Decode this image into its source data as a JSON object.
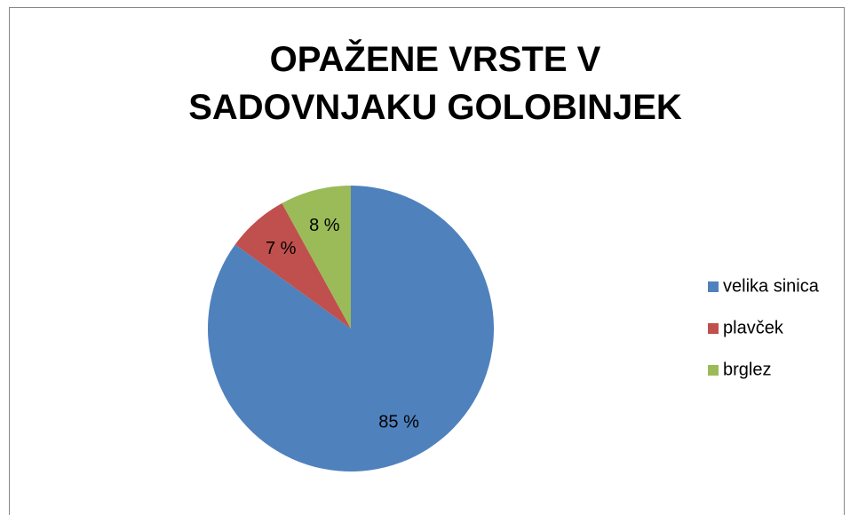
{
  "chart_data": {
    "type": "pie",
    "title": "OPAŽENE VRSTE V SADOVNJAKU GOLOBINJEK",
    "categories": [
      "velika sinica",
      "plavček",
      "brglez"
    ],
    "values": [
      85,
      7,
      8
    ],
    "value_labels": [
      "85 %",
      "7 %",
      "8 %"
    ],
    "colors": [
      "#4f81bd",
      "#c0504d",
      "#9bbb59"
    ],
    "legend": "right"
  }
}
